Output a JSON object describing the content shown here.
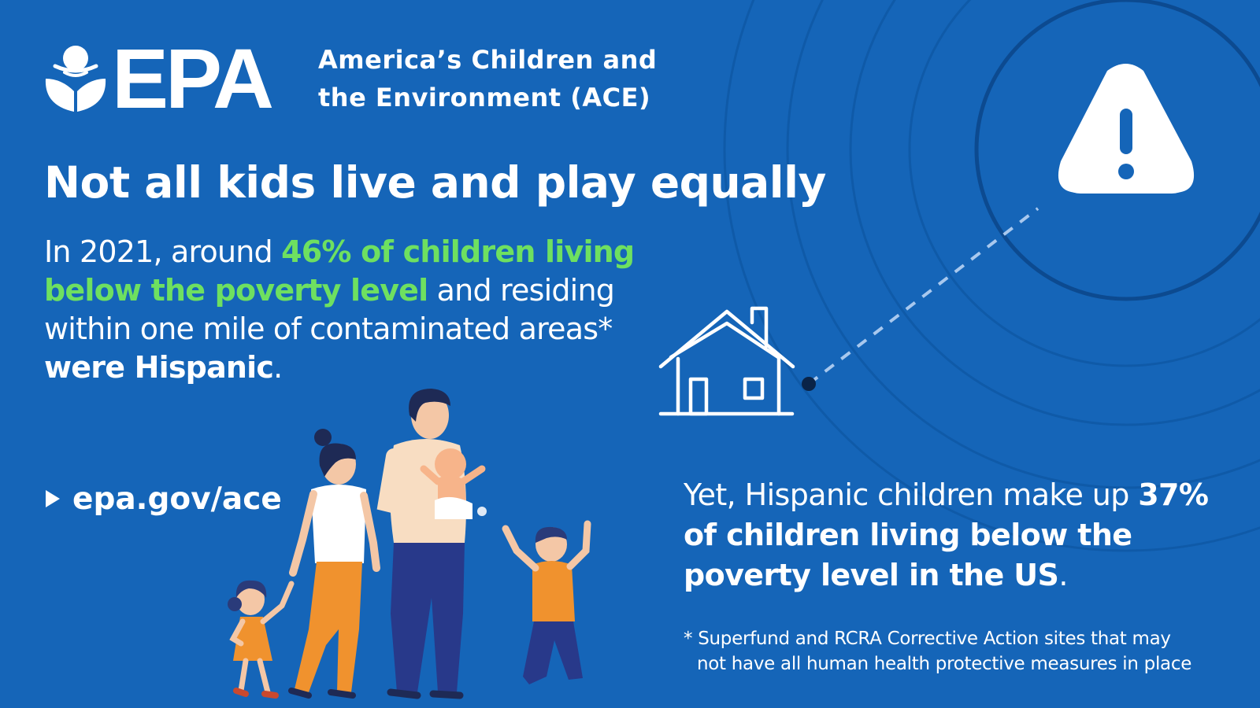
{
  "brand": {
    "logo_text": "EPA",
    "subtitle_line1": "America’s Children and",
    "subtitle_line2": "the Environment (ACE)"
  },
  "headline": "Not all kids live and play equally",
  "stat1": {
    "intro": "In 2021, around ",
    "highlight": "46% of children living below the poverty level",
    "middle": " and residing within one mile of contaminated areas* ",
    "emphasis": "were Hispanic",
    "end": "."
  },
  "link": {
    "label": "epa.gov/ace"
  },
  "stat2": {
    "intro": "Yet, Hispanic children make up ",
    "emphasis": "37% of children living below the poverty level in the US",
    "end": "."
  },
  "footnote": {
    "line1": "* Superfund and RCRA Corrective Action sites that may",
    "line2": "not have all human health protective measures in place"
  },
  "icons": {
    "logo": "epa-flower-logo-icon",
    "warning": "warning-triangle-icon",
    "house": "house-icon",
    "family": "family-illustration"
  },
  "colors": {
    "background": "#1565b8",
    "highlight": "#6ee060",
    "text": "#ffffff",
    "ring": "#0d4f9a"
  }
}
